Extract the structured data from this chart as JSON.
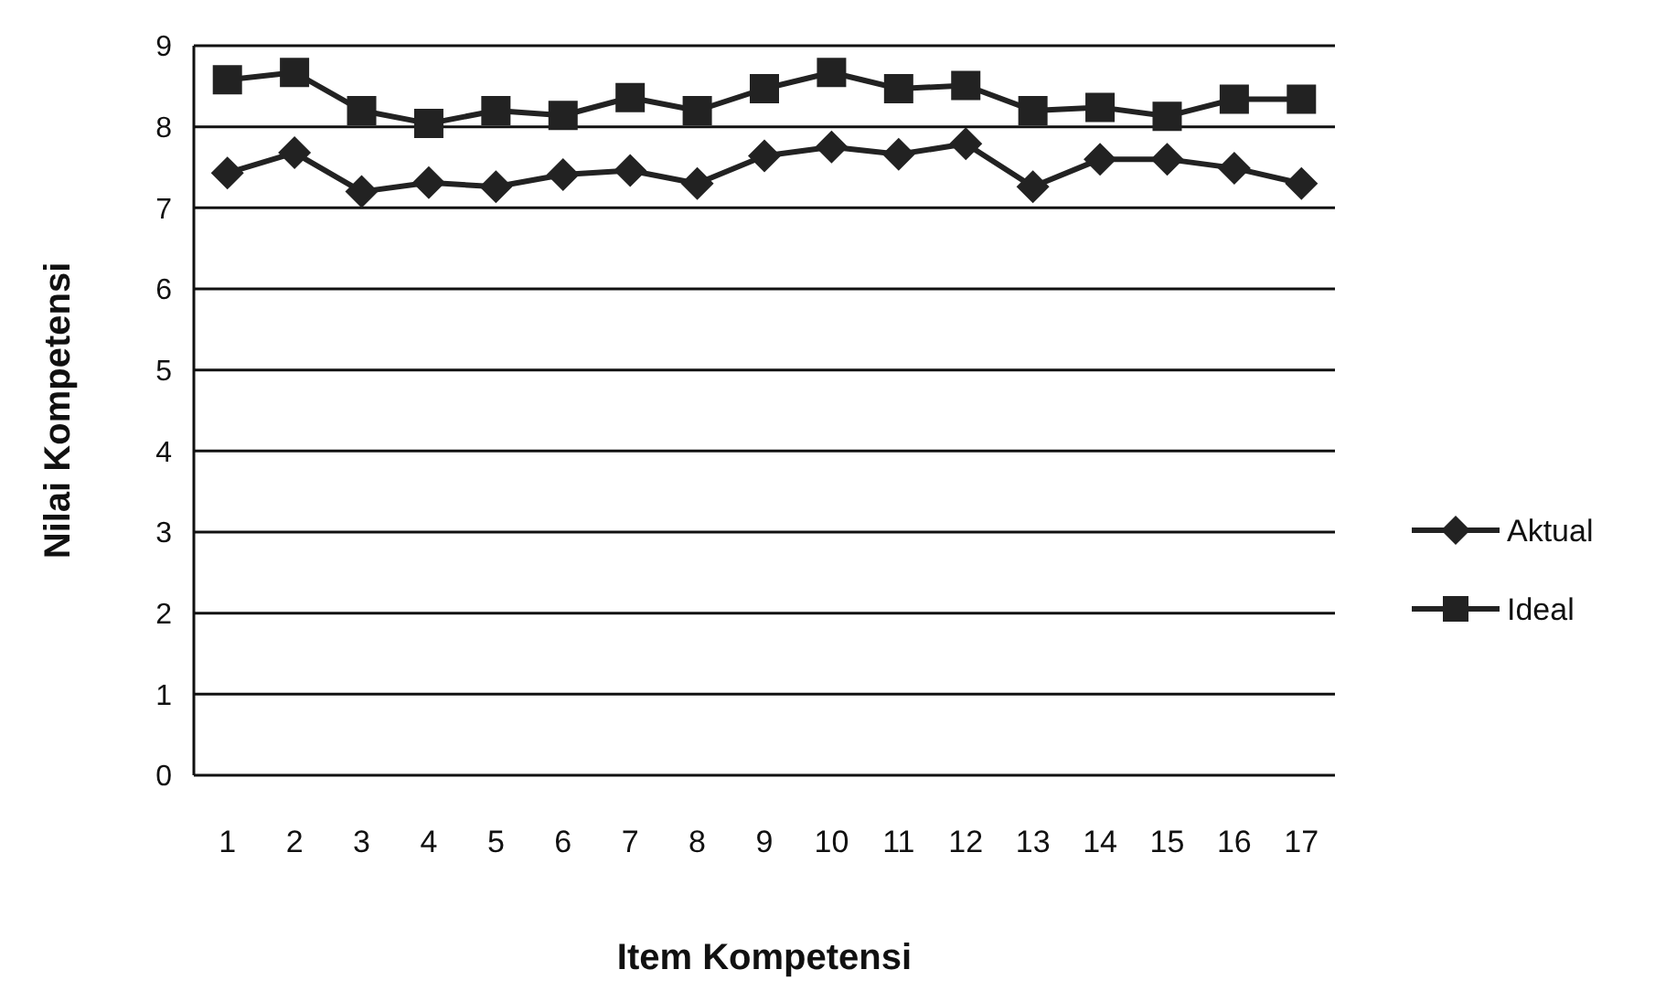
{
  "chart_data": {
    "type": "line",
    "xlabel": "Item Kompetensi",
    "ylabel": "Nilai Kompetensi",
    "categories": [
      "1",
      "2",
      "3",
      "4",
      "5",
      "6",
      "7",
      "8",
      "9",
      "10",
      "11",
      "12",
      "13",
      "14",
      "15",
      "16",
      "17"
    ],
    "series": [
      {
        "name": "Aktual",
        "color": "#222222",
        "marker": "diamond",
        "values": [
          7.43,
          7.68,
          7.2,
          7.31,
          7.26,
          7.41,
          7.46,
          7.3,
          7.64,
          7.75,
          7.66,
          7.79,
          7.26,
          7.6,
          7.6,
          7.49,
          7.3
        ]
      },
      {
        "name": "Ideal",
        "color": "#222222",
        "marker": "square",
        "values": [
          8.58,
          8.67,
          8.2,
          8.04,
          8.2,
          8.14,
          8.36,
          8.2,
          8.47,
          8.67,
          8.47,
          8.51,
          8.2,
          8.24,
          8.13,
          8.34,
          8.34
        ]
      }
    ],
    "ylim": [
      0,
      9
    ],
    "yticks": [
      0,
      1,
      2,
      3,
      4,
      5,
      6,
      7,
      8,
      9
    ],
    "grid": "y",
    "legend": "right"
  }
}
